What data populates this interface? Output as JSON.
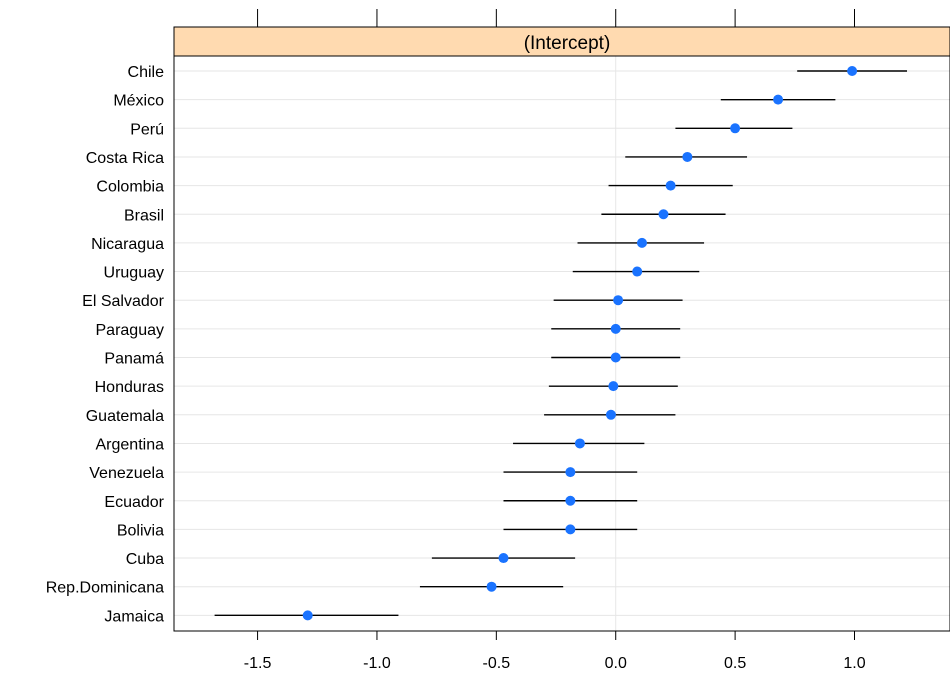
{
  "chart_data": {
    "type": "dotplot-interval",
    "panel_title": "(Intercept)",
    "xlabel": "",
    "ylabel": "",
    "xlim": [
      -1.85,
      1.4
    ],
    "x_ticks": [
      -1.5,
      -1.0,
      -0.5,
      0.0,
      0.5,
      1.0
    ],
    "x_tick_labels": [
      "-1.5",
      "-1.0",
      "-0.5",
      "0.0",
      "0.5",
      "1.0"
    ],
    "grid": true,
    "colors": {
      "strip": "#FFDAB0",
      "point": "#1A73FF",
      "interval": "#000000",
      "gridline": "#E6E6E6"
    },
    "categories": [
      "Chile",
      "México",
      "Perú",
      "Costa Rica",
      "Colombia",
      "Brasil",
      "Nicaragua",
      "Uruguay",
      "El Salvador",
      "Paraguay",
      "Panamá",
      "Honduras",
      "Guatemala",
      "Argentina",
      "Venezuela",
      "Ecuador",
      "Bolivia",
      "Cuba",
      "Rep.Dominicana",
      "Jamaica"
    ],
    "estimates": [
      0.99,
      0.68,
      0.5,
      0.3,
      0.23,
      0.2,
      0.11,
      0.09,
      0.01,
      0.0,
      0.0,
      -0.01,
      -0.02,
      -0.15,
      -0.19,
      -0.19,
      -0.19,
      -0.47,
      -0.52,
      -1.29
    ],
    "lower": [
      0.76,
      0.44,
      0.25,
      0.04,
      -0.03,
      -0.06,
      -0.16,
      -0.18,
      -0.26,
      -0.27,
      -0.27,
      -0.28,
      -0.3,
      -0.43,
      -0.47,
      -0.47,
      -0.47,
      -0.77,
      -0.82,
      -1.68
    ],
    "upper": [
      1.22,
      0.92,
      0.74,
      0.55,
      0.49,
      0.46,
      0.37,
      0.35,
      0.28,
      0.27,
      0.27,
      0.26,
      0.25,
      0.12,
      0.09,
      0.09,
      0.09,
      -0.17,
      -0.22,
      -0.91
    ]
  }
}
